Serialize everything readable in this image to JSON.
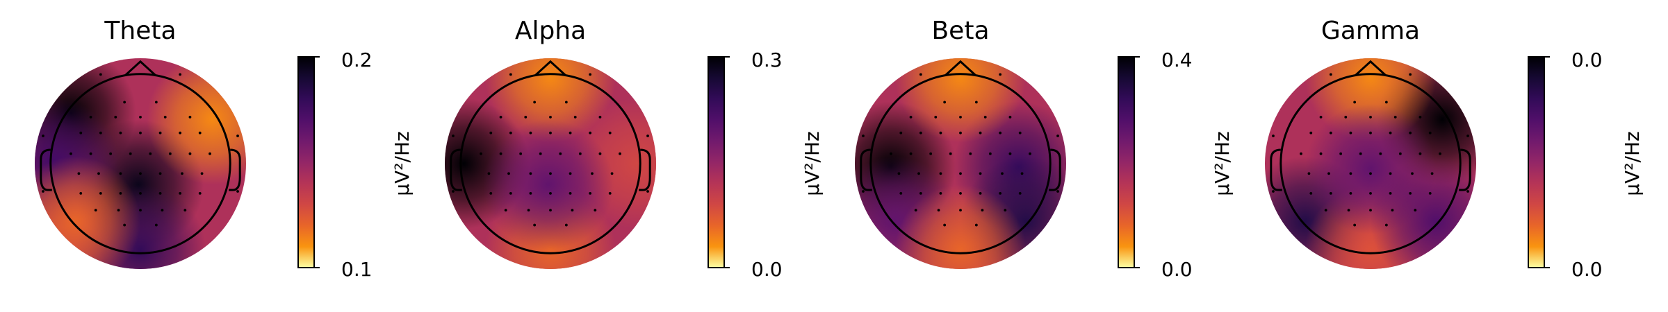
{
  "chart_data": [
    {
      "type": "heatmap",
      "title": "Theta",
      "colorbar_label": "µV²/Hz",
      "colormap": "inferno",
      "colorbar_ticks": [
        "0.1",
        "0.2"
      ],
      "vlim": [
        0.1,
        0.2
      ],
      "hotspots": [
        {
          "position": "left-frontal",
          "level": 1.0
        },
        {
          "position": "center-parietal",
          "level": 0.95
        },
        {
          "position": "left-temporal",
          "level": 0.75
        },
        {
          "position": "occipital",
          "level": 0.8
        },
        {
          "position": "right-frontal",
          "level": 0.12
        },
        {
          "position": "left-occipital",
          "level": 0.2
        }
      ]
    },
    {
      "type": "heatmap",
      "title": "Alpha",
      "colorbar_label": "µV²/Hz",
      "colormap": "inferno",
      "colorbar_ticks": [
        "0.0",
        "0.3"
      ],
      "vlim": [
        0.0,
        0.3
      ],
      "hotspots": [
        {
          "position": "left-temporal",
          "level": 1.0
        },
        {
          "position": "frontal",
          "level": 0.12
        },
        {
          "position": "right-temporal",
          "level": 0.3
        },
        {
          "position": "occipital",
          "level": 0.2
        },
        {
          "position": "center-parietal",
          "level": 0.65
        }
      ]
    },
    {
      "type": "heatmap",
      "title": "Beta",
      "colorbar_label": "µV²/Hz",
      "colormap": "inferno",
      "colorbar_ticks": [
        "0.0",
        "0.4"
      ],
      "vlim": [
        0.0,
        0.4
      ],
      "hotspots": [
        {
          "position": "left-central",
          "level": 1.0
        },
        {
          "position": "right-central",
          "level": 0.78
        },
        {
          "position": "right-occipital",
          "level": 0.85
        },
        {
          "position": "frontal",
          "level": 0.12
        },
        {
          "position": "left-occipital",
          "level": 0.65
        },
        {
          "position": "occipital",
          "level": 0.2
        }
      ]
    },
    {
      "type": "heatmap",
      "title": "Gamma",
      "colorbar_label": "µV²/Hz",
      "colormap": "inferno",
      "colorbar_ticks": [
        "0.0",
        "0.0"
      ],
      "vlim": [
        0.0,
        0.0
      ],
      "hotspots": [
        {
          "position": "right-frontal",
          "level": 1.0
        },
        {
          "position": "left-occipital",
          "level": 0.85
        },
        {
          "position": "frontal",
          "level": 0.12
        },
        {
          "position": "occipital",
          "level": 0.25
        },
        {
          "position": "center",
          "level": 0.65
        },
        {
          "position": "right-occipital",
          "level": 0.7
        }
      ]
    }
  ]
}
